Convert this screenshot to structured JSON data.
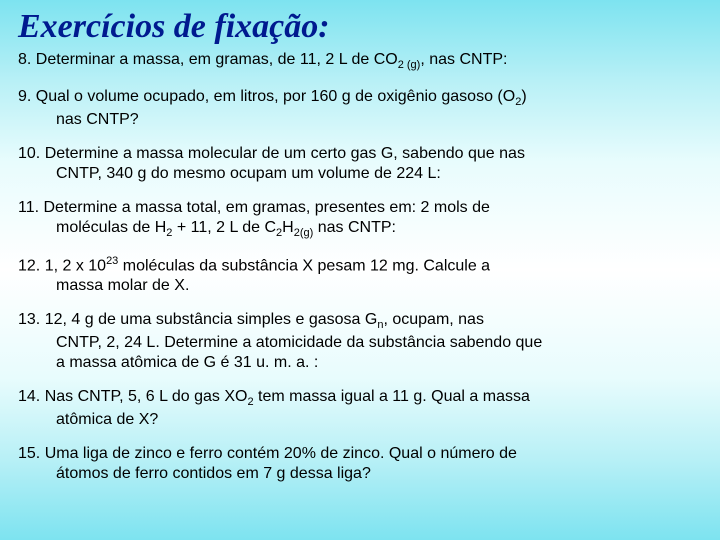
{
  "title": "Exercícios de fixação:",
  "title_color": "#001a8f",
  "title_fontsize": 34,
  "title_font": "Comic Sans MS",
  "body_fontsize": 16,
  "body_color": "#000000",
  "background_gradient": [
    "#7de3f0",
    "#b8f0f6",
    "#e8fcfd",
    "#ffffff",
    "#e8fcfd",
    "#b8f0f6",
    "#7de3f0"
  ],
  "questions": {
    "q8": {
      "prefix": "8. Determinar a massa, em gramas, de 11, 2 L de CO",
      "sub1": "2 (g)",
      "suffix": ", nas CNTP:"
    },
    "q9": {
      "line1a": "9. Qual o volume ocupado, em litros, por 160 g de oxigênio gasoso (O",
      "sub1": "2",
      "line1b": ")",
      "line2": "nas CNTP?"
    },
    "q10": {
      "line1": "10. Determine a massa molecular de um certo gas G, sabendo que nas",
      "line2": "CNTP, 340 g do mesmo ocupam um volume de 224 L:"
    },
    "q11": {
      "line1": "11. Determine a massa total, em gramas, presentes em: 2 mols de",
      "line2a": "moléculas de H",
      "sub1": "2",
      "line2b": " + 11, 2 L de C",
      "sub2": "2",
      "line2c": "H",
      "sub3": "2(g)",
      "line2d": " nas CNTP:"
    },
    "q12": {
      "line1a": "12. 1, 2 x 10",
      "sup1": "23",
      "line1b": " moléculas da substância X pesam 12 mg. Calcule a",
      "line2": "massa molar de X."
    },
    "q13": {
      "line1a": "13. 12, 4 g de uma substância simples e gasosa G",
      "sub1": "n",
      "line1b": ", ocupam, nas",
      "line2": "CNTP, 2, 24 L. Determine a atomicidade da substância sabendo que",
      "line3": "a massa atômica de G é 31 u. m. a. :"
    },
    "q14": {
      "line1a": "14. Nas CNTP, 5, 6 L do gas XO",
      "sub1": "2",
      "line1b": " tem massa igual a 11 g. Qual a massa",
      "line2": "atômica de X?"
    },
    "q15": {
      "line1": "15. Uma liga de zinco e ferro contém 20% de zinco. Qual o número de",
      "line2": "átomos de ferro contidos em 7 g dessa liga?"
    }
  }
}
